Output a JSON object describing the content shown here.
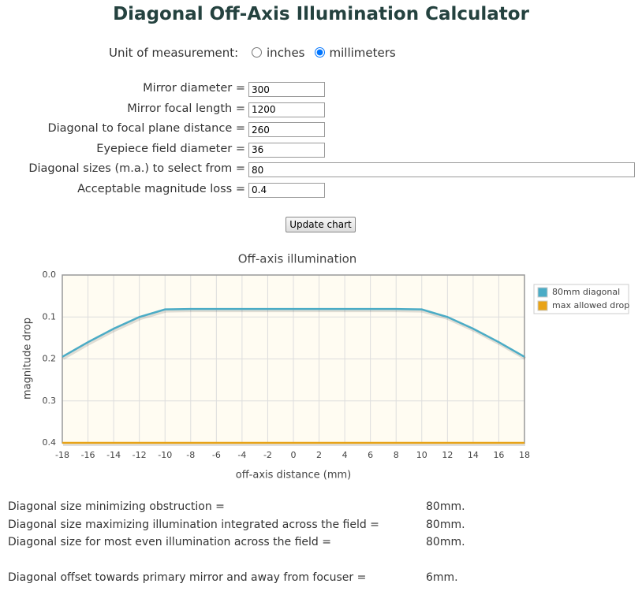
{
  "header": {
    "title": "Diagonal Off-Axis Illumination Calculator"
  },
  "unit": {
    "label": "Unit of measurement:",
    "options": [
      "inches",
      "millimeters"
    ],
    "selected": 1
  },
  "form": {
    "fields": [
      {
        "label": "Mirror diameter =",
        "value": "300"
      },
      {
        "label": "Mirror focal length =",
        "value": "1200"
      },
      {
        "label": "Diagonal to focal plane distance =",
        "value": "260"
      },
      {
        "label": "Eyepiece field diameter =",
        "value": "36"
      },
      {
        "label": "Diagonal sizes (m.a.) to select from =",
        "value": "80"
      },
      {
        "label": "Acceptable magnitude loss =",
        "value": "0.4"
      }
    ],
    "button": "Update chart"
  },
  "chart_data": {
    "type": "line",
    "title": "Off-axis illumination",
    "x_label": "off-axis distance (mm)",
    "y_label": "magnitude drop",
    "x": [
      -18,
      -16,
      -14,
      -12,
      -10,
      -8,
      -6,
      -4,
      -2,
      0,
      2,
      4,
      6,
      8,
      10,
      12,
      14,
      16,
      18
    ],
    "series": [
      {
        "name": "80mm diagonal",
        "color": "#4bacc6",
        "values": [
          0.195,
          0.16,
          0.128,
          0.1,
          0.082,
          0.081,
          0.081,
          0.081,
          0.081,
          0.081,
          0.081,
          0.081,
          0.081,
          0.081,
          0.082,
          0.1,
          0.128,
          0.16,
          0.195
        ]
      },
      {
        "name": "max allowed drop",
        "color": "#e8a317",
        "values": [
          0.4,
          0.4,
          0.4,
          0.4,
          0.4,
          0.4,
          0.4,
          0.4,
          0.4,
          0.4,
          0.4,
          0.4,
          0.4,
          0.4,
          0.4,
          0.4,
          0.4,
          0.4,
          0.4
        ]
      }
    ],
    "xlim": [
      -18,
      18
    ],
    "ylim": [
      0,
      0.4
    ],
    "y_inverted": true,
    "xticks": [
      -18,
      -16,
      -14,
      -12,
      -10,
      -8,
      -6,
      -4,
      -2,
      0,
      2,
      4,
      6,
      8,
      10,
      12,
      14,
      16,
      18
    ],
    "yticks": [
      {
        "value": 0,
        "label": "0.0"
      },
      0.1,
      0.2,
      0.3,
      0.4
    ],
    "grid": true,
    "legend": "right"
  },
  "results": {
    "rows": [
      [
        "Diagonal size minimizing obstruction =",
        "80mm."
      ],
      [
        "Diagonal size maximizing illumination integrated across the field =",
        "80mm."
      ],
      [
        "Diagonal size for most even illumination across the field =",
        "80mm."
      ]
    ],
    "offset": [
      "Diagonal offset towards primary mirror and away from focuser =",
      "6mm."
    ]
  }
}
